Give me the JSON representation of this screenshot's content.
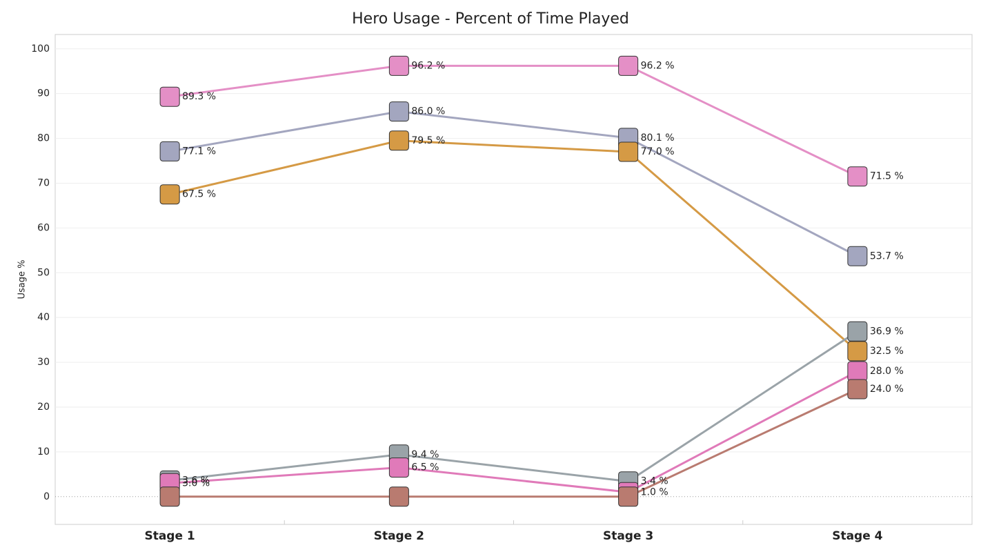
{
  "chart_data": {
    "type": "line",
    "title": "Hero Usage - Percent of Time Played",
    "y_label": "Usage %",
    "categories": [
      "Stage 1",
      "Stage 2",
      "Stage 3",
      "Stage 4"
    ],
    "series": [
      {
        "color": "#e48fc6",
        "values": [
          89.3,
          96.2,
          96.2,
          71.5
        ],
        "value_labels": [
          "89.3 %",
          "96.2 %",
          "96.2 %",
          "71.5 %"
        ]
      },
      {
        "color": "#a3a6bf",
        "values": [
          77.1,
          86.0,
          80.1,
          53.7
        ],
        "value_labels": [
          "77.1 %",
          "86.0 %",
          "80.1 %",
          "53.7 %"
        ]
      },
      {
        "color": "#d59a45",
        "values": [
          67.5,
          79.5,
          77.0,
          32.5
        ],
        "value_labels": [
          "67.5 %",
          "79.5 %",
          "77.0 %",
          "32.5 %"
        ]
      },
      {
        "color": "#9aa3a8",
        "values": [
          3.6,
          9.4,
          3.4,
          36.9
        ],
        "value_labels": [
          "3.6 %",
          "9.4 %",
          "3.4 %",
          "36.9 %"
        ]
      },
      {
        "color": "#e07ab9",
        "values": [
          3.0,
          6.5,
          1.0,
          28.0
        ],
        "value_labels": [
          "3.0 %",
          "6.5 %",
          "1.0 %",
          "28.0 %"
        ]
      },
      {
        "color": "#b97b70",
        "values": [
          0,
          0,
          0,
          24.0
        ],
        "value_labels": [
          null,
          null,
          null,
          "24.0 %"
        ]
      }
    ],
    "ylim": [
      -6.2,
      103.2
    ],
    "yticks": [
      0,
      10,
      20,
      30,
      40,
      50,
      60,
      70,
      80,
      90,
      100
    ],
    "grid": true
  }
}
